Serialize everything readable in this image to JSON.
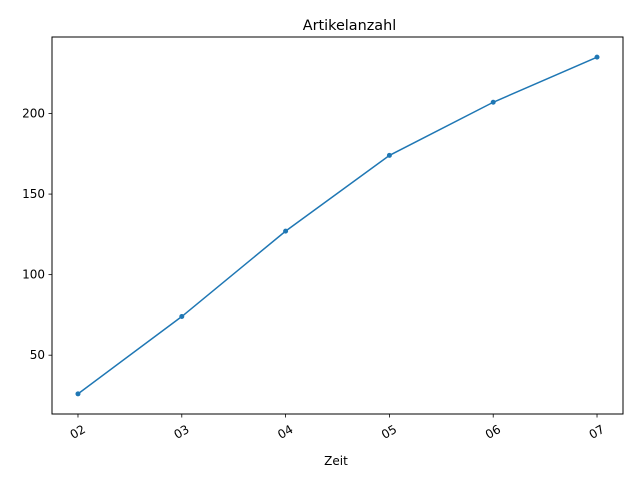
{
  "chart_data": {
    "type": "line",
    "title": "Artikelanzahl",
    "xlabel": "Zeit",
    "ylabel": "",
    "categories": [
      "02",
      "03",
      "04",
      "05",
      "06",
      "07"
    ],
    "series": [
      {
        "values": [
          26,
          74,
          127,
          174,
          207,
          235
        ],
        "color": "#1f77b4",
        "marker": "point"
      }
    ],
    "ylim": [
      13.5,
      247.5
    ],
    "yticks": [
      50,
      100,
      150,
      200
    ],
    "grid": false,
    "legend": "none",
    "x_tick_rotation_deg": 30
  }
}
